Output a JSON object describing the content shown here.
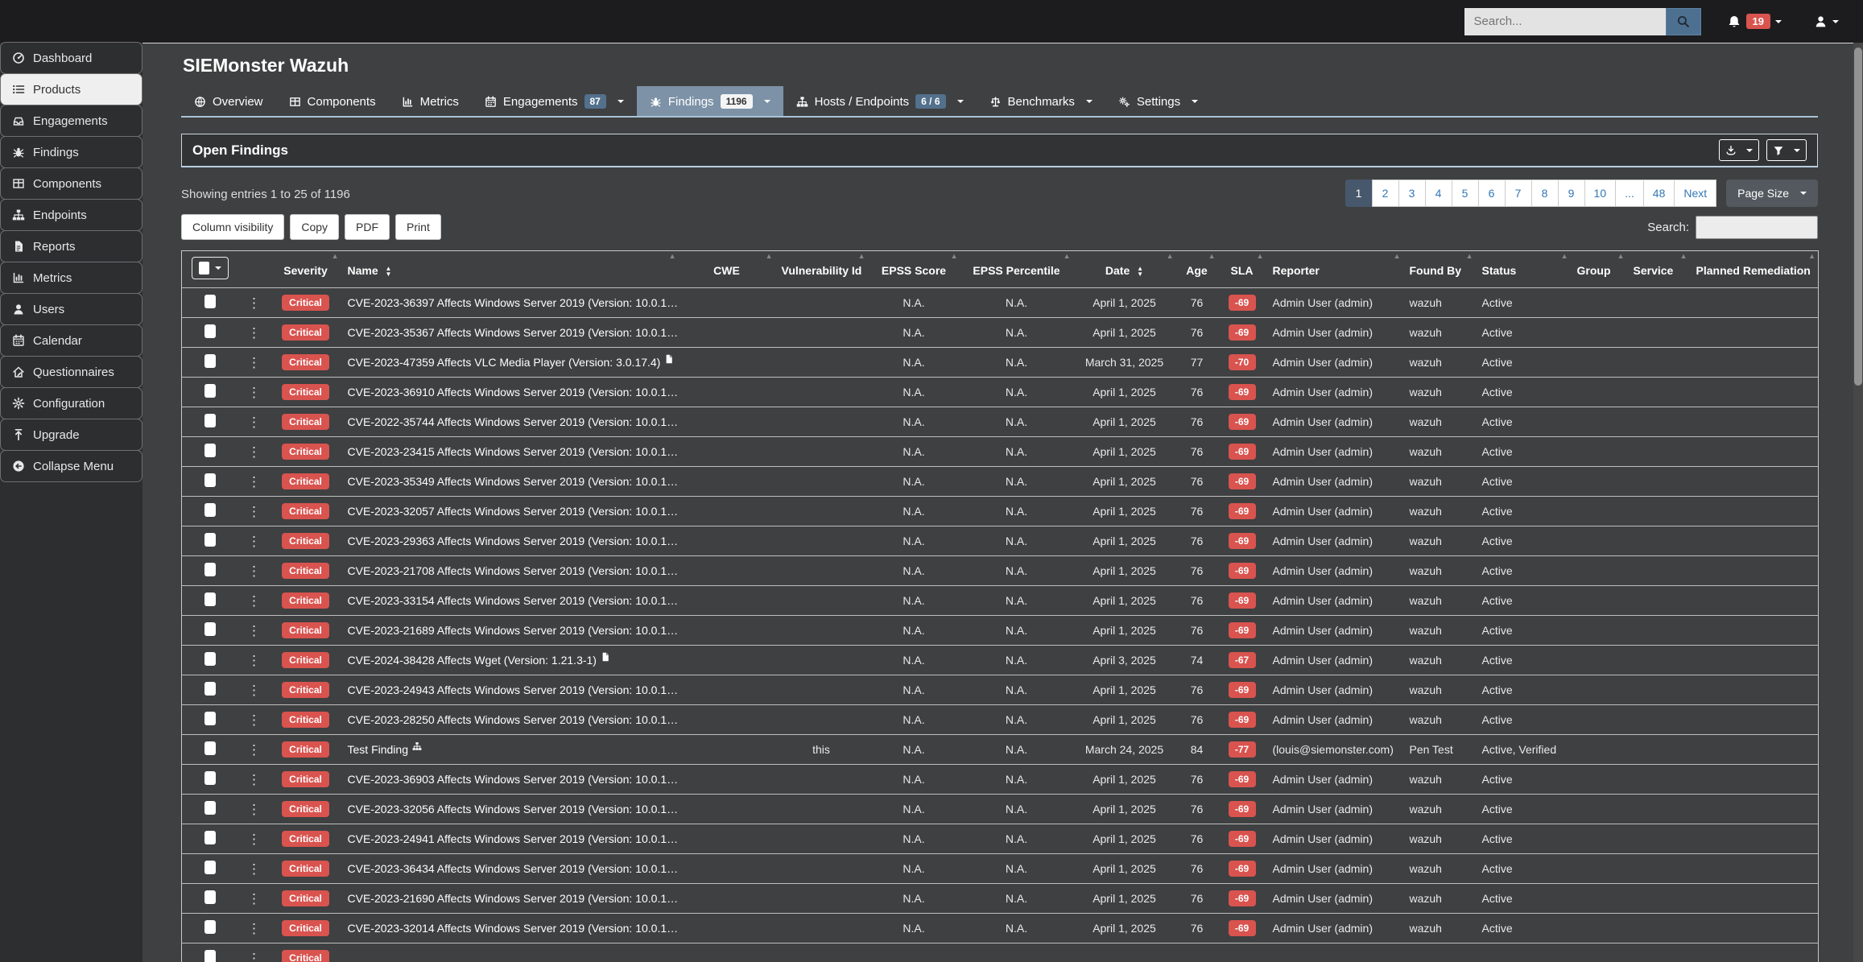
{
  "topbar": {
    "search_placeholder": "Search...",
    "search_button_icon": "magnifier-icon",
    "notification_icon": "bell-icon",
    "notification_count": "19",
    "user_icon": "person-icon"
  },
  "sidebar": {
    "items": [
      {
        "icon": "dashboard-icon",
        "label": "Dashboard",
        "active": false
      },
      {
        "icon": "list-icon",
        "label": "Products",
        "active": true
      },
      {
        "icon": "inbox-icon",
        "label": "Engagements",
        "active": false
      },
      {
        "icon": "bug-icon",
        "label": "Findings",
        "active": false
      },
      {
        "icon": "table-icon",
        "label": "Components",
        "active": false
      },
      {
        "icon": "sitemap-icon",
        "label": "Endpoints",
        "active": false
      },
      {
        "icon": "file-icon",
        "label": "Reports",
        "active": false
      },
      {
        "icon": "chart-icon",
        "label": "Metrics",
        "active": false
      },
      {
        "icon": "user-icon",
        "label": "Users",
        "active": false
      },
      {
        "icon": "calendar-icon",
        "label": "Calendar",
        "active": false
      },
      {
        "icon": "questionnaire-icon",
        "label": "Questionnaires",
        "active": false
      },
      {
        "icon": "gear-icon",
        "label": "Configuration",
        "active": false
      },
      {
        "icon": "upgrade-icon",
        "label": "Upgrade",
        "active": false
      },
      {
        "icon": "collapse-icon",
        "label": "Collapse Menu",
        "active": false
      }
    ]
  },
  "page": {
    "product_title": "SIEMonster Wazuh"
  },
  "tabs": [
    {
      "icon": "globe-icon",
      "label": "Overview",
      "badge": "",
      "badge_style": "",
      "caret": false,
      "active": false
    },
    {
      "icon": "table-icon",
      "label": "Components",
      "badge": "",
      "badge_style": "",
      "caret": false,
      "active": false
    },
    {
      "icon": "chart-icon",
      "label": "Metrics",
      "badge": "",
      "badge_style": "",
      "caret": false,
      "active": false
    },
    {
      "icon": "calendar-icon",
      "label": "Engagements",
      "badge": "87",
      "badge_style": "badge-slate",
      "caret": true,
      "active": false
    },
    {
      "icon": "bug-icon",
      "label": "Findings",
      "badge": "1196",
      "badge_style": "badge-light",
      "caret": true,
      "active": true
    },
    {
      "icon": "sitemap-icon",
      "label": "Hosts / Endpoints",
      "badge": "6 / 6",
      "badge_style": "badge-slate",
      "caret": true,
      "active": false
    },
    {
      "icon": "balance-icon",
      "label": "Benchmarks",
      "badge": "",
      "badge_style": "",
      "caret": true,
      "active": false
    },
    {
      "icon": "gears-icon",
      "label": "Settings",
      "badge": "",
      "badge_style": "",
      "caret": true,
      "active": false
    }
  ],
  "panel": {
    "title": "Open Findings",
    "download_icon": "download-icon",
    "filter_icon": "filter-icon"
  },
  "table_controls": {
    "showing_text": "Showing entries 1 to 25 of 1196",
    "buttons": [
      {
        "label": "Column visibility"
      },
      {
        "label": "Copy"
      },
      {
        "label": "PDF"
      },
      {
        "label": "Print"
      }
    ],
    "search_label": "Search:"
  },
  "pagination": {
    "pages": [
      {
        "label": "1",
        "active": true
      },
      {
        "label": "2",
        "active": false
      },
      {
        "label": "3",
        "active": false
      },
      {
        "label": "4",
        "active": false
      },
      {
        "label": "5",
        "active": false
      },
      {
        "label": "6",
        "active": false
      },
      {
        "label": "7",
        "active": false
      },
      {
        "label": "8",
        "active": false
      },
      {
        "label": "9",
        "active": false
      },
      {
        "label": "10",
        "active": false
      },
      {
        "label": "...",
        "active": false
      },
      {
        "label": "48",
        "active": false
      },
      {
        "label": "Next",
        "active": false
      }
    ],
    "page_size_label": "Page Size"
  },
  "colors": {
    "severity_badge": "#d9534f",
    "sla_badge": "#d9534f",
    "notification_badge": "#d9534f",
    "active_tab": "#7d92a7",
    "pagination_active": "#47586c",
    "pagination_link": "#3377b5",
    "tab_underline": "#a9c2d6"
  },
  "table": {
    "columns": [
      {
        "key": "col-severity",
        "label": "Severity",
        "sort": false,
        "hint": true
      },
      {
        "key": "col-name",
        "label": "Name",
        "sort": true,
        "hint": true
      },
      {
        "key": "col-cwe",
        "label": "CWE",
        "sort": false,
        "hint": true
      },
      {
        "key": "col-vuln",
        "label": "Vulnerability Id",
        "sort": false,
        "hint": true
      },
      {
        "key": "col-escore",
        "label": "EPSS Score",
        "sort": false,
        "hint": true
      },
      {
        "key": "col-epct",
        "label": "EPSS Percentile",
        "sort": false,
        "hint": true
      },
      {
        "key": "col-date",
        "label": "Date",
        "sort": true,
        "hint": true
      },
      {
        "key": "col-age",
        "label": "Age",
        "sort": false,
        "hint": true
      },
      {
        "key": "col-sla",
        "label": "SLA",
        "sort": false,
        "hint": true
      },
      {
        "key": "col-reporter",
        "label": "Reporter",
        "sort": false,
        "hint": true
      },
      {
        "key": "col-foundby",
        "label": "Found By",
        "sort": false,
        "hint": true
      },
      {
        "key": "col-status",
        "label": "Status",
        "sort": false,
        "hint": true
      },
      {
        "key": "col-group",
        "label": "Group",
        "sort": false,
        "hint": true
      },
      {
        "key": "col-service",
        "label": "Service",
        "sort": false,
        "hint": true
      },
      {
        "key": "col-planned",
        "label": "Planned Remediation",
        "sort": false,
        "hint": true
      }
    ],
    "rows": [
      {
        "severity": "Critical",
        "name": "CVE-2023-36397 Affects Windows Server 2019 (Version: 10.0.1…",
        "name_icon": "document-icon",
        "cwe": "",
        "vulnerability_id": "",
        "epss_score": "N.A.",
        "epss_percentile": "N.A.",
        "date": "April 1, 2025",
        "age": "76",
        "sla": "-69",
        "reporter": "Admin User (admin)",
        "found_by": "wazuh",
        "status": "Active",
        "group": "",
        "service": "",
        "planned_remediation": ""
      },
      {
        "severity": "Critical",
        "name": "CVE-2023-35367 Affects Windows Server 2019 (Version: 10.0.1…",
        "name_icon": "document-icon",
        "cwe": "",
        "vulnerability_id": "",
        "epss_score": "N.A.",
        "epss_percentile": "N.A.",
        "date": "April 1, 2025",
        "age": "76",
        "sla": "-69",
        "reporter": "Admin User (admin)",
        "found_by": "wazuh",
        "status": "Active",
        "group": "",
        "service": "",
        "planned_remediation": ""
      },
      {
        "severity": "Critical",
        "name": "CVE-2023-47359 Affects VLC Media Player (Version: 3.0.17.4)",
        "name_icon": "document-icon",
        "cwe": "",
        "vulnerability_id": "",
        "epss_score": "N.A.",
        "epss_percentile": "N.A.",
        "date": "March 31, 2025",
        "age": "77",
        "sla": "-70",
        "reporter": "Admin User (admin)",
        "found_by": "wazuh",
        "status": "Active",
        "group": "",
        "service": "",
        "planned_remediation": ""
      },
      {
        "severity": "Critical",
        "name": "CVE-2023-36910 Affects Windows Server 2019 (Version: 10.0.1…",
        "name_icon": "document-icon",
        "cwe": "",
        "vulnerability_id": "",
        "epss_score": "N.A.",
        "epss_percentile": "N.A.",
        "date": "April 1, 2025",
        "age": "76",
        "sla": "-69",
        "reporter": "Admin User (admin)",
        "found_by": "wazuh",
        "status": "Active",
        "group": "",
        "service": "",
        "planned_remediation": ""
      },
      {
        "severity": "Critical",
        "name": "CVE-2022-35744 Affects Windows Server 2019 (Version: 10.0.1…",
        "name_icon": "document-icon",
        "cwe": "",
        "vulnerability_id": "",
        "epss_score": "N.A.",
        "epss_percentile": "N.A.",
        "date": "April 1, 2025",
        "age": "76",
        "sla": "-69",
        "reporter": "Admin User (admin)",
        "found_by": "wazuh",
        "status": "Active",
        "group": "",
        "service": "",
        "planned_remediation": ""
      },
      {
        "severity": "Critical",
        "name": "CVE-2023-23415 Affects Windows Server 2019 (Version: 10.0.1…",
        "name_icon": "document-icon",
        "cwe": "",
        "vulnerability_id": "",
        "epss_score": "N.A.",
        "epss_percentile": "N.A.",
        "date": "April 1, 2025",
        "age": "76",
        "sla": "-69",
        "reporter": "Admin User (admin)",
        "found_by": "wazuh",
        "status": "Active",
        "group": "",
        "service": "",
        "planned_remediation": ""
      },
      {
        "severity": "Critical",
        "name": "CVE-2023-35349 Affects Windows Server 2019 (Version: 10.0.1…",
        "name_icon": "document-icon",
        "cwe": "",
        "vulnerability_id": "",
        "epss_score": "N.A.",
        "epss_percentile": "N.A.",
        "date": "April 1, 2025",
        "age": "76",
        "sla": "-69",
        "reporter": "Admin User (admin)",
        "found_by": "wazuh",
        "status": "Active",
        "group": "",
        "service": "",
        "planned_remediation": ""
      },
      {
        "severity": "Critical",
        "name": "CVE-2023-32057 Affects Windows Server 2019 (Version: 10.0.1…",
        "name_icon": "document-icon",
        "cwe": "",
        "vulnerability_id": "",
        "epss_score": "N.A.",
        "epss_percentile": "N.A.",
        "date": "April 1, 2025",
        "age": "76",
        "sla": "-69",
        "reporter": "Admin User (admin)",
        "found_by": "wazuh",
        "status": "Active",
        "group": "",
        "service": "",
        "planned_remediation": ""
      },
      {
        "severity": "Critical",
        "name": "CVE-2023-29363 Affects Windows Server 2019 (Version: 10.0.1…",
        "name_icon": "document-icon",
        "cwe": "",
        "vulnerability_id": "",
        "epss_score": "N.A.",
        "epss_percentile": "N.A.",
        "date": "April 1, 2025",
        "age": "76",
        "sla": "-69",
        "reporter": "Admin User (admin)",
        "found_by": "wazuh",
        "status": "Active",
        "group": "",
        "service": "",
        "planned_remediation": ""
      },
      {
        "severity": "Critical",
        "name": "CVE-2023-21708 Affects Windows Server 2019 (Version: 10.0.1…",
        "name_icon": "document-icon",
        "cwe": "",
        "vulnerability_id": "",
        "epss_score": "N.A.",
        "epss_percentile": "N.A.",
        "date": "April 1, 2025",
        "age": "76",
        "sla": "-69",
        "reporter": "Admin User (admin)",
        "found_by": "wazuh",
        "status": "Active",
        "group": "",
        "service": "",
        "planned_remediation": ""
      },
      {
        "severity": "Critical",
        "name": "CVE-2023-33154 Affects Windows Server 2019 (Version: 10.0.1…",
        "name_icon": "document-icon",
        "cwe": "",
        "vulnerability_id": "",
        "epss_score": "N.A.",
        "epss_percentile": "N.A.",
        "date": "April 1, 2025",
        "age": "76",
        "sla": "-69",
        "reporter": "Admin User (admin)",
        "found_by": "wazuh",
        "status": "Active",
        "group": "",
        "service": "",
        "planned_remediation": ""
      },
      {
        "severity": "Critical",
        "name": "CVE-2023-21689 Affects Windows Server 2019 (Version: 10.0.1…",
        "name_icon": "document-icon",
        "cwe": "",
        "vulnerability_id": "",
        "epss_score": "N.A.",
        "epss_percentile": "N.A.",
        "date": "April 1, 2025",
        "age": "76",
        "sla": "-69",
        "reporter": "Admin User (admin)",
        "found_by": "wazuh",
        "status": "Active",
        "group": "",
        "service": "",
        "planned_remediation": ""
      },
      {
        "severity": "Critical",
        "name": "CVE-2024-38428 Affects Wget (Version: 1.21.3-1)",
        "name_icon": "document-icon",
        "cwe": "",
        "vulnerability_id": "",
        "epss_score": "N.A.",
        "epss_percentile": "N.A.",
        "date": "April 3, 2025",
        "age": "74",
        "sla": "-67",
        "reporter": "Admin User (admin)",
        "found_by": "wazuh",
        "status": "Active",
        "group": "",
        "service": "",
        "planned_remediation": ""
      },
      {
        "severity": "Critical",
        "name": "CVE-2023-24943 Affects Windows Server 2019 (Version: 10.0.1…",
        "name_icon": "document-icon",
        "cwe": "",
        "vulnerability_id": "",
        "epss_score": "N.A.",
        "epss_percentile": "N.A.",
        "date": "April 1, 2025",
        "age": "76",
        "sla": "-69",
        "reporter": "Admin User (admin)",
        "found_by": "wazuh",
        "status": "Active",
        "group": "",
        "service": "",
        "planned_remediation": ""
      },
      {
        "severity": "Critical",
        "name": "CVE-2023-28250 Affects Windows Server 2019 (Version: 10.0.1…",
        "name_icon": "document-icon",
        "cwe": "",
        "vulnerability_id": "",
        "epss_score": "N.A.",
        "epss_percentile": "N.A.",
        "date": "April 1, 2025",
        "age": "76",
        "sla": "-69",
        "reporter": "Admin User (admin)",
        "found_by": "wazuh",
        "status": "Active",
        "group": "",
        "service": "",
        "planned_remediation": ""
      },
      {
        "severity": "Critical",
        "name": "Test Finding",
        "name_icon": "sitemap-icon",
        "cwe": "",
        "vulnerability_id": "this",
        "epss_score": "N.A.",
        "epss_percentile": "N.A.",
        "date": "March 24, 2025",
        "age": "84",
        "sla": "-77",
        "reporter": "(louis@siemonster.com)",
        "found_by": "Pen Test",
        "status": "Active, Verified",
        "group": "",
        "service": "",
        "planned_remediation": ""
      },
      {
        "severity": "Critical",
        "name": "CVE-2023-36903 Affects Windows Server 2019 (Version: 10.0.1…",
        "name_icon": "document-icon",
        "cwe": "",
        "vulnerability_id": "",
        "epss_score": "N.A.",
        "epss_percentile": "N.A.",
        "date": "April 1, 2025",
        "age": "76",
        "sla": "-69",
        "reporter": "Admin User (admin)",
        "found_by": "wazuh",
        "status": "Active",
        "group": "",
        "service": "",
        "planned_remediation": ""
      },
      {
        "severity": "Critical",
        "name": "CVE-2023-32056 Affects Windows Server 2019 (Version: 10.0.1…",
        "name_icon": "document-icon",
        "cwe": "",
        "vulnerability_id": "",
        "epss_score": "N.A.",
        "epss_percentile": "N.A.",
        "date": "April 1, 2025",
        "age": "76",
        "sla": "-69",
        "reporter": "Admin User (admin)",
        "found_by": "wazuh",
        "status": "Active",
        "group": "",
        "service": "",
        "planned_remediation": ""
      },
      {
        "severity": "Critical",
        "name": "CVE-2023-24941 Affects Windows Server 2019 (Version: 10.0.1…",
        "name_icon": "document-icon",
        "cwe": "",
        "vulnerability_id": "",
        "epss_score": "N.A.",
        "epss_percentile": "N.A.",
        "date": "April 1, 2025",
        "age": "76",
        "sla": "-69",
        "reporter": "Admin User (admin)",
        "found_by": "wazuh",
        "status": "Active",
        "group": "",
        "service": "",
        "planned_remediation": ""
      },
      {
        "severity": "Critical",
        "name": "CVE-2023-36434 Affects Windows Server 2019 (Version: 10.0.1…",
        "name_icon": "document-icon",
        "cwe": "",
        "vulnerability_id": "",
        "epss_score": "N.A.",
        "epss_percentile": "N.A.",
        "date": "April 1, 2025",
        "age": "76",
        "sla": "-69",
        "reporter": "Admin User (admin)",
        "found_by": "wazuh",
        "status": "Active",
        "group": "",
        "service": "",
        "planned_remediation": ""
      },
      {
        "severity": "Critical",
        "name": "CVE-2023-21690 Affects Windows Server 2019 (Version: 10.0.1…",
        "name_icon": "document-icon",
        "cwe": "",
        "vulnerability_id": "",
        "epss_score": "N.A.",
        "epss_percentile": "N.A.",
        "date": "April 1, 2025",
        "age": "76",
        "sla": "-69",
        "reporter": "Admin User (admin)",
        "found_by": "wazuh",
        "status": "Active",
        "group": "",
        "service": "",
        "planned_remediation": ""
      },
      {
        "severity": "Critical",
        "name": "CVE-2023-32014 Affects Windows Server 2019 (Version: 10.0.1…",
        "name_icon": "document-icon",
        "cwe": "",
        "vulnerability_id": "",
        "epss_score": "N.A.",
        "epss_percentile": "N.A.",
        "date": "April 1, 2025",
        "age": "76",
        "sla": "-69",
        "reporter": "Admin User (admin)",
        "found_by": "wazuh",
        "status": "Active",
        "group": "",
        "service": "",
        "planned_remediation": ""
      },
      {
        "severity": "Critical",
        "name": "",
        "name_icon": "",
        "cwe": "",
        "vulnerability_id": "",
        "epss_score": "",
        "epss_percentile": "",
        "date": "",
        "age": "",
        "sla": "",
        "reporter": "",
        "found_by": "",
        "status": "",
        "group": "",
        "service": "",
        "planned_remediation": ""
      }
    ]
  }
}
